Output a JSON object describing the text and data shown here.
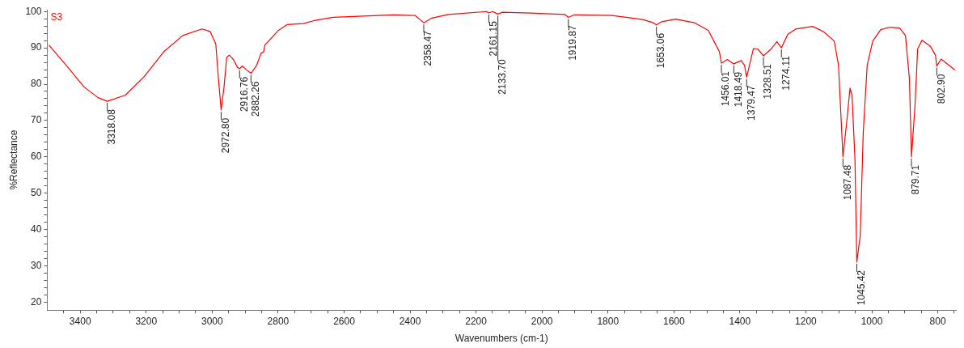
{
  "chart_data": {
    "type": "line",
    "xlabel": "Wavenumbers (cm-1)",
    "ylabel": "%Reflectance",
    "xlim": [
      3500,
      745
    ],
    "ylim": [
      17.8,
      100.5
    ],
    "xticks": [
      {
        "value": 3450,
        "label": null
      },
      3400,
      {
        "value": 3350,
        "label": null
      },
      {
        "value": 3300,
        "label": null
      },
      {
        "value": 3250,
        "label": null
      },
      3200,
      {
        "value": 3150,
        "label": null
      },
      {
        "value": 3100,
        "label": null
      },
      {
        "value": 3050,
        "label": null
      },
      3000,
      {
        "value": 2950,
        "label": null
      },
      {
        "value": 2900,
        "label": null
      },
      {
        "value": 2850,
        "label": null
      },
      2800,
      {
        "value": 2750,
        "label": null
      },
      {
        "value": 2700,
        "label": null
      },
      {
        "value": 2650,
        "label": null
      },
      2600,
      {
        "value": 2550,
        "label": null
      },
      {
        "value": 2500,
        "label": null
      },
      {
        "value": 2450,
        "label": null
      },
      2400,
      {
        "value": 2350,
        "label": null
      },
      {
        "value": 2300,
        "label": null
      },
      {
        "value": 2250,
        "label": null
      },
      2200,
      {
        "value": 2150,
        "label": null
      },
      {
        "value": 2100,
        "label": null
      },
      {
        "value": 2050,
        "label": null
      },
      2000,
      {
        "value": 1950,
        "label": null
      },
      {
        "value": 1900,
        "label": null
      },
      {
        "value": 1850,
        "label": null
      },
      1800,
      {
        "value": 1750,
        "label": null
      },
      {
        "value": 1700,
        "label": null
      },
      {
        "value": 1650,
        "label": null
      },
      1600,
      {
        "value": 1550,
        "label": null
      },
      {
        "value": 1500,
        "label": null
      },
      {
        "value": 1450,
        "label": null
      },
      1400,
      {
        "value": 1350,
        "label": null
      },
      {
        "value": 1300,
        "label": null
      },
      {
        "value": 1250,
        "label": null
      },
      1200,
      {
        "value": 1150,
        "label": null
      },
      {
        "value": 1100,
        "label": null
      },
      {
        "value": 1050,
        "label": null
      },
      1000,
      {
        "value": 950,
        "label": null
      },
      {
        "value": 900,
        "label": null
      },
      {
        "value": 850,
        "label": null
      },
      800,
      {
        "value": 750,
        "label": null
      }
    ],
    "yticks": [
      20,
      {
        "value": 22,
        "label": null
      },
      {
        "value": 24,
        "label": null
      },
      {
        "value": 26,
        "label": null
      },
      {
        "value": 28,
        "label": null
      },
      30,
      {
        "value": 32,
        "label": null
      },
      {
        "value": 34,
        "label": null
      },
      {
        "value": 36,
        "label": null
      },
      {
        "value": 38,
        "label": null
      },
      40,
      {
        "value": 42,
        "label": null
      },
      {
        "value": 44,
        "label": null
      },
      {
        "value": 46,
        "label": null
      },
      {
        "value": 48,
        "label": null
      },
      50,
      {
        "value": 52,
        "label": null
      },
      {
        "value": 54,
        "label": null
      },
      {
        "value": 56,
        "label": null
      },
      {
        "value": 58,
        "label": null
      },
      60,
      {
        "value": 62,
        "label": null
      },
      {
        "value": 64,
        "label": null
      },
      {
        "value": 66,
        "label": null
      },
      {
        "value": 68,
        "label": null
      },
      70,
      {
        "value": 72,
        "label": null
      },
      {
        "value": 74,
        "label": null
      },
      {
        "value": 76,
        "label": null
      },
      {
        "value": 78,
        "label": null
      },
      80,
      {
        "value": 82,
        "label": null
      },
      {
        "value": 84,
        "label": null
      },
      {
        "value": 86,
        "label": null
      },
      {
        "value": 88,
        "label": null
      },
      90,
      {
        "value": 92,
        "label": null
      },
      {
        "value": 94,
        "label": null
      },
      {
        "value": 96,
        "label": null
      },
      {
        "value": 98,
        "label": null
      },
      100
    ],
    "marker": "none",
    "line_style": "solid",
    "series": [
      {
        "name": "S3",
        "color": "#ff0000",
        "x": [
          3495,
          3437,
          3388,
          3346,
          3318.08,
          3263,
          3205,
          3147,
          3089,
          3031,
          3006,
          2989,
          2981,
          2972.8,
          2964,
          2956,
          2948,
          2935,
          2923,
          2916.76,
          2908,
          2898,
          2882.26,
          2865,
          2852,
          2844,
          2840,
          2798,
          2773,
          2724,
          2691,
          2633,
          2450,
          2384,
          2358.47,
          2334,
          2284,
          2168,
          2161.15,
          2150,
          2133.7,
          2120,
          2035,
          1931,
          1919.87,
          1902,
          1786,
          1745,
          1695,
          1662,
          1653.06,
          1637,
          1595,
          1537,
          1496,
          1479,
          1462,
          1456.01,
          1438,
          1418.49,
          1396,
          1386,
          1379.47,
          1367,
          1359,
          1346,
          1328.51,
          1305,
          1288,
          1274.11,
          1255,
          1230,
          1180,
          1147,
          1114,
          1101,
          1093,
          1087.48,
          1076,
          1066,
          1060,
          1051,
          1045.42,
          1035,
          1026,
          1014,
          997,
          973,
          944,
          915,
          898,
          886,
          879.71,
          869,
          861,
          848,
          823,
          807,
          802.9,
          790,
          748
        ],
        "values": [
          90.8,
          84.6,
          79.2,
          76.3,
          75.3,
          77.0,
          82.2,
          88.9,
          93.4,
          95.2,
          94.5,
          91.1,
          81.5,
          72.9,
          79.2,
          87.4,
          88.0,
          86.7,
          84.6,
          84.3,
          85.0,
          84.1,
          83.0,
          85.2,
          88.5,
          88.9,
          90.8,
          94.9,
          96.4,
          96.7,
          97.5,
          98.4,
          99.1,
          98.9,
          96.9,
          98.2,
          99.2,
          100.0,
          99.6,
          100.0,
          99.3,
          99.8,
          99.6,
          99.2,
          98.4,
          99.1,
          98.9,
          98.4,
          97.8,
          96.9,
          96.3,
          97.2,
          97.9,
          96.9,
          94.8,
          91.9,
          88.9,
          85.8,
          86.8,
          85.6,
          86.5,
          85.2,
          81.9,
          86.7,
          89.8,
          89.7,
          87.8,
          89.7,
          91.7,
          90.0,
          93.7,
          95.2,
          95.9,
          94.5,
          91.9,
          85.2,
          70.3,
          60.0,
          69.7,
          78.9,
          77.0,
          59.2,
          31.0,
          38.4,
          66.6,
          85.2,
          91.9,
          95.0,
          95.7,
          95.4,
          93.4,
          81.5,
          60.0,
          74.1,
          89.7,
          92.1,
          90.5,
          88.0,
          85.0,
          86.9,
          83.9
        ]
      }
    ],
    "annotations": [
      {
        "text": "3318.08",
        "x": 3318.08,
        "y": 75.3
      },
      {
        "text": "2972.80",
        "x": 2972.8,
        "y": 72.9
      },
      {
        "text": "2916.76",
        "x": 2916.76,
        "y": 84.3
      },
      {
        "text": "2882.26",
        "x": 2882.26,
        "y": 83.0
      },
      {
        "text": "2358.47",
        "x": 2358.47,
        "y": 96.9
      },
      {
        "text": "2161.15",
        "x": 2161.15,
        "y": 99.6
      },
      {
        "text": "2133.70",
        "x": 2133.7,
        "y": 99.3
      },
      {
        "text": "1919.87",
        "x": 1919.87,
        "y": 98.4
      },
      {
        "text": "1653.06",
        "x": 1653.06,
        "y": 96.3
      },
      {
        "text": "1456.01",
        "x": 1456.01,
        "y": 85.8
      },
      {
        "text": "1418.49",
        "x": 1418.49,
        "y": 85.6
      },
      {
        "text": "1379.47",
        "x": 1379.47,
        "y": 81.9
      },
      {
        "text": "1328.51",
        "x": 1328.51,
        "y": 87.8
      },
      {
        "text": "1274.11",
        "x": 1274.11,
        "y": 90.0
      },
      {
        "text": "1087.48",
        "x": 1087.48,
        "y": 60.0
      },
      {
        "text": "1045.42",
        "x": 1045.42,
        "y": 31.0
      },
      {
        "text": "879.71",
        "x": 879.71,
        "y": 60.0
      },
      {
        "text": "802.90",
        "x": 802.9,
        "y": 85.0
      }
    ]
  }
}
